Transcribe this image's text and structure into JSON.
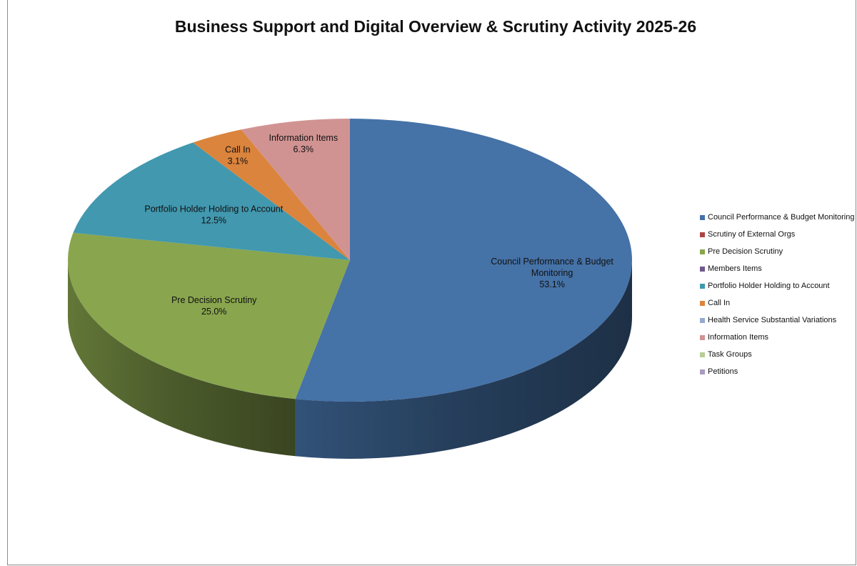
{
  "chart_data": {
    "type": "pie",
    "title": "Business Support and Digital Overview & Scrutiny Activity 2025-26",
    "legend_position": "right",
    "series": [
      {
        "name": "Council Performance & Budget Monitoring",
        "label_lines": [
          "Council Performance & Budget",
          "Monitoring"
        ],
        "value": 53.1,
        "value_label": "53.1%",
        "color": "#4572A7"
      },
      {
        "name": "Scrutiny of External Orgs",
        "value": 0,
        "color": "#AA4643"
      },
      {
        "name": "Pre Decision Scrutiny",
        "label_lines": [
          "Pre Decision Scrutiny"
        ],
        "value": 25.0,
        "value_label": "25.0%",
        "color": "#89A54E"
      },
      {
        "name": "Members Items",
        "value": 0,
        "color": "#71588F"
      },
      {
        "name": "Portfolio Holder Holding to Account",
        "label_lines": [
          "Portfolio Holder Holding to Account"
        ],
        "value": 12.5,
        "value_label": "12.5%",
        "color": "#4198AF"
      },
      {
        "name": "Call In",
        "label_lines": [
          "Call In"
        ],
        "value": 3.1,
        "value_label": "3.1%",
        "color": "#DB843D"
      },
      {
        "name": "Health Service Substantial Variations",
        "value": 0,
        "color": "#93A9CF"
      },
      {
        "name": "Information Items",
        "label_lines": [
          "Information Items"
        ],
        "value": 6.3,
        "value_label": "6.3%",
        "color": "#D19392"
      },
      {
        "name": "Task Groups",
        "value": 0,
        "color": "#B9CD96"
      },
      {
        "name": "Petitions",
        "value": 0,
        "color": "#A99BBD"
      }
    ]
  }
}
